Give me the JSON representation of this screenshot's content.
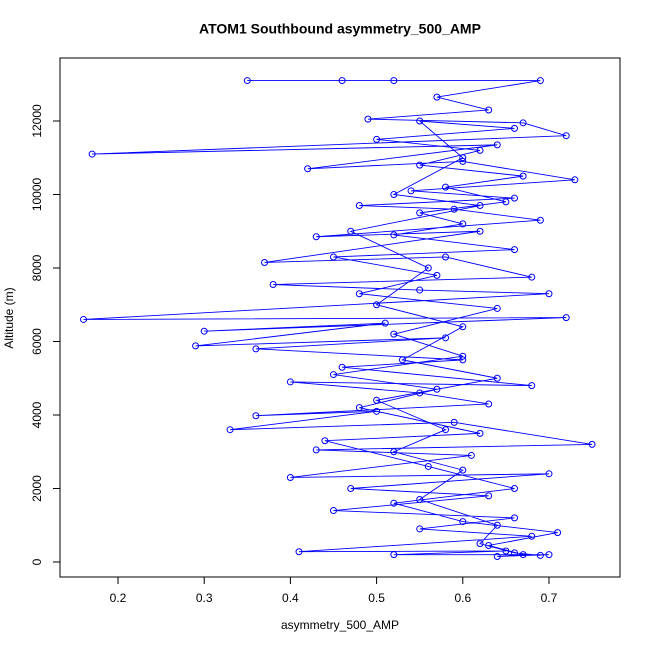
{
  "chart_data": {
    "type": "line",
    "title": "ATOM1 Southbound asymmetry_500_AMP",
    "x_label": "asymmetry_500_AMP",
    "y_label": "Altitude (m)",
    "color": "#0000ff",
    "markers": true,
    "xlim": [
      0.1327,
      0.7824
    ],
    "ylim": [
      -408,
      13714
    ],
    "xticks": [
      0.2,
      0.3,
      0.4,
      0.5,
      0.6,
      0.7
    ],
    "yticks": [
      0,
      2000,
      4000,
      6000,
      8000,
      10000,
      12000
    ],
    "x": [
      0.35,
      0.46,
      0.52,
      0.69,
      0.57,
      0.63,
      0.49,
      0.67,
      0.72,
      0.17,
      0.64,
      0.42,
      0.6,
      0.73,
      0.54,
      0.66,
      0.48,
      0.59,
      0.69,
      0.43,
      0.62,
      0.37,
      0.58,
      0.68,
      0.38,
      0.55,
      0.7,
      0.16,
      0.72,
      0.3,
      0.51,
      0.29,
      0.58,
      0.36,
      0.6,
      0.46,
      0.68,
      0.4,
      0.55,
      0.63,
      0.36,
      0.5,
      0.33,
      0.59,
      0.75,
      0.43,
      0.61,
      0.4,
      0.7,
      0.47,
      0.63,
      0.45,
      0.66,
      0.55,
      0.68,
      0.41,
      0.65,
      0.52,
      0.7,
      0.64,
      0.67,
      0.63,
      0.71,
      0.6,
      0.52,
      0.66,
      0.56,
      0.44,
      0.62,
      0.48,
      0.57,
      0.45,
      0.6,
      0.52,
      0.64,
      0.48,
      0.57,
      0.45,
      0.66,
      0.52,
      0.6,
      0.55,
      0.65,
      0.58,
      0.67,
      0.55,
      0.62,
      0.5,
      0.66,
      0.55,
      0.6,
      0.52,
      0.62,
      0.47,
      0.56,
      0.5,
      0.6,
      0.53,
      0.64,
      0.5,
      0.58,
      0.52,
      0.6,
      0.55,
      0.64,
      0.62,
      0.66,
      0.69
    ],
    "values": [
      13100,
      13100,
      13100,
      13100,
      12650,
      12300,
      12050,
      11950,
      11600,
      11100,
      11350,
      10700,
      10900,
      10400,
      10100,
      9900,
      9700,
      9600,
      9300,
      8850,
      9000,
      8150,
      8300,
      7750,
      7550,
      7400,
      7300,
      6600,
      6650,
      6280,
      6500,
      5880,
      6100,
      5800,
      5500,
      5300,
      4800,
      4900,
      4600,
      4300,
      3980,
      4100,
      3600,
      3800,
      3200,
      3050,
      2900,
      2300,
      2400,
      2000,
      1800,
      1400,
      1200,
      900,
      700,
      280,
      300,
      200,
      200,
      150,
      200,
      450,
      800,
      1100,
      1600,
      2000,
      2600,
      3300,
      3500,
      4200,
      4700,
      5100,
      5600,
      6200,
      6900,
      7300,
      7800,
      8300,
      8500,
      8900,
      9200,
      9500,
      9800,
      10200,
      10500,
      10800,
      11200,
      11500,
      11800,
      12000,
      11000,
      10000,
      9700,
      9000,
      8000,
      7000,
      6400,
      5500,
      5000,
      4400,
      3600,
      3000,
      2500,
      1700,
      1000,
      500,
      250,
      180
    ]
  }
}
